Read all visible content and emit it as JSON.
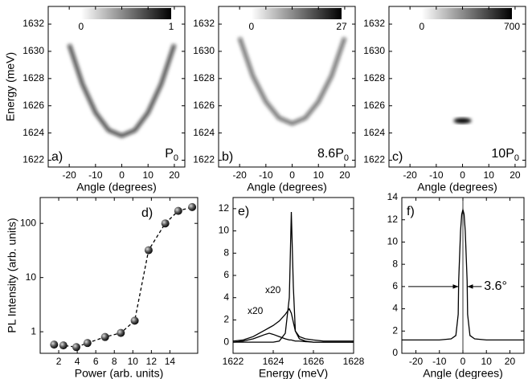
{
  "chart_data": [
    {
      "type": "image",
      "panel_label": "a)",
      "annotation": {
        "text": "P",
        "sub": "0"
      },
      "xlabel": "Angle (degrees)",
      "ylabel": "Energy (meV)",
      "xlim": [
        -28,
        24
      ],
      "ylim": [
        1621.5,
        1633.3
      ],
      "xticks": [
        -20,
        -10,
        0,
        10,
        20
      ],
      "yticks": [
        1622,
        1624,
        1626,
        1628,
        1630,
        1632
      ],
      "colorbar_ticks": [
        0,
        1
      ],
      "x": [
        -20,
        -15,
        -10,
        -5,
        0,
        5,
        10,
        15,
        20
      ],
      "values": [
        1630.5,
        1627.6,
        1625.5,
        1624.2,
        1623.8,
        1624.2,
        1625.5,
        1627.6,
        1630.5
      ]
    },
    {
      "type": "image",
      "panel_label": "b)",
      "annotation": {
        "text": "8.6P",
        "sub": "0"
      },
      "xlabel": "Angle (degrees)",
      "xlim": [
        -28,
        24
      ],
      "ylim": [
        1621.5,
        1633.3
      ],
      "xticks": [
        -20,
        -10,
        0,
        10,
        20
      ],
      "yticks": [
        1622,
        1624,
        1626,
        1628,
        1630,
        1632
      ],
      "colorbar_ticks": [
        0,
        27
      ],
      "x": [
        -20,
        -15,
        -10,
        -5,
        0,
        5,
        10,
        15,
        20
      ],
      "values": [
        1631.0,
        1628.2,
        1626.3,
        1625.1,
        1624.7,
        1625.1,
        1626.3,
        1628.2,
        1631.0
      ]
    },
    {
      "type": "image",
      "panel_label": "c)",
      "annotation": {
        "text": "10P",
        "sub": "0"
      },
      "xlabel": "Angle (degrees)",
      "xlim": [
        -28,
        24
      ],
      "ylim": [
        1621.5,
        1633.3
      ],
      "xticks": [
        -20,
        -10,
        0,
        10,
        20
      ],
      "yticks": [
        1622,
        1624,
        1626,
        1628,
        1630,
        1632
      ],
      "colorbar_ticks": [
        0,
        700
      ],
      "x": [
        0
      ],
      "values": [
        1624.9
      ]
    },
    {
      "type": "line",
      "panel_label": "d)",
      "xlabel": "Power (arb. units)",
      "ylabel": "PL Intensity (arb. units)",
      "log_y": true,
      "markers": true,
      "dashed": true,
      "xlim": [
        0,
        17
      ],
      "ylim": [
        0.4,
        300
      ],
      "xticks": [
        2,
        4,
        6,
        8,
        10,
        12,
        14
      ],
      "yticks": [
        1,
        10,
        100
      ],
      "x": [
        1.5,
        2.5,
        3.9,
        5.1,
        7.0,
        8.7,
        10.2,
        11.7,
        13.5,
        14.9,
        16.4
      ],
      "values": [
        0.58,
        0.56,
        0.52,
        0.62,
        0.8,
        0.95,
        1.6,
        32,
        100,
        170,
        200
      ]
    },
    {
      "type": "line",
      "panel_label": "e)",
      "xlabel": "Energy (meV)",
      "annotations": [
        "x20",
        "x20"
      ],
      "xlim": [
        1622,
        1628
      ],
      "ylim": [
        -1,
        13
      ],
      "xticks": [
        1622,
        1624,
        1626,
        1628
      ],
      "yticks": [
        0,
        2,
        4,
        6,
        8,
        10,
        12
      ],
      "x": [
        1622,
        1622.5,
        1623,
        1623.3,
        1623.6,
        1623.8,
        1624,
        1624.3,
        1624.6,
        1624.8,
        1624.9,
        1625,
        1625.1,
        1625.3,
        1625.6,
        1626,
        1626.5,
        1627,
        1627.5,
        1628
      ],
      "series": [
        {
          "color": "#000000",
          "values": [
            0,
            0,
            0,
            0,
            0,
            0,
            0,
            0.1,
            0.8,
            4,
            11.7,
            5,
            1,
            0.3,
            0.1,
            0,
            0,
            0,
            0,
            0
          ]
        },
        {
          "color": "#000000",
          "values": [
            0.1,
            0.2,
            0.5,
            0.8,
            1.1,
            1.3,
            1.5,
            1.9,
            2.5,
            3,
            2.6,
            1.8,
            1.0,
            0.5,
            0.3,
            0.2,
            0.1,
            0.1,
            0.1,
            0.1
          ]
        },
        {
          "color": "#000000",
          "values": [
            0,
            0.1,
            0.3,
            0.5,
            0.7,
            0.8,
            0.7,
            0.5,
            0.3,
            0.2,
            0.2,
            0.15,
            0.1,
            0.1,
            0.05,
            0,
            0,
            0,
            0,
            0
          ]
        }
      ]
    },
    {
      "type": "line",
      "panel_label": "f)",
      "xlabel": "Angle (degrees)",
      "annotation_width": "3.6°",
      "vline": 0,
      "xlim": [
        -26,
        26
      ],
      "ylim": [
        0,
        14
      ],
      "xticks": [
        -20,
        -10,
        0,
        10,
        20
      ],
      "yticks": [
        0,
        2,
        4,
        6,
        8,
        10,
        12,
        14
      ],
      "x": [
        -26,
        -20,
        -10,
        -5,
        -3,
        -2,
        -1.8,
        -1,
        -0.5,
        0,
        0.5,
        1,
        1.8,
        2,
        3,
        5,
        10,
        20,
        26
      ],
      "values": [
        1.2,
        1.2,
        1.2,
        1.3,
        1.6,
        3.5,
        6.5,
        11,
        12.5,
        12.9,
        12.5,
        11,
        6.5,
        3.5,
        1.6,
        1.3,
        1.2,
        1.2,
        1.2
      ]
    }
  ]
}
